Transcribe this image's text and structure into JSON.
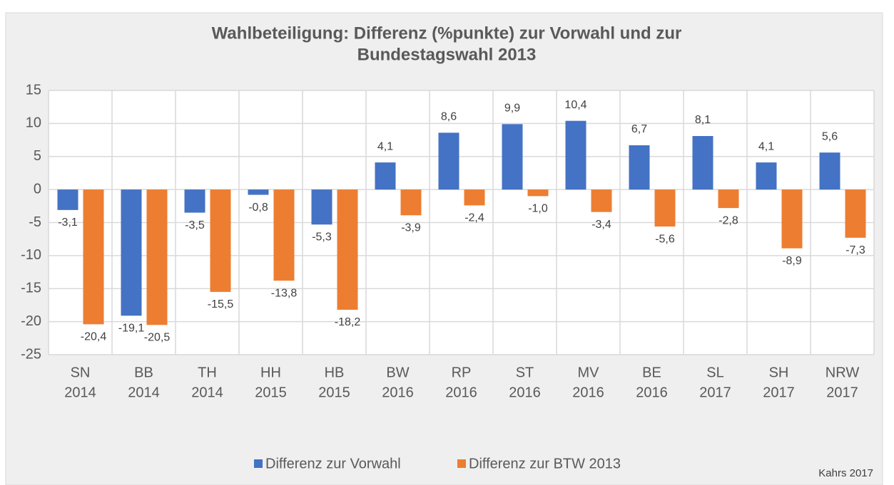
{
  "chart_data": {
    "type": "bar",
    "title": [
      "Wahlbeteiligung: Differenz (%punkte) zur Vorwahl und zur",
      "Bundestagswahl 2013"
    ],
    "categories": [
      [
        "SN",
        "2014"
      ],
      [
        "BB",
        "2014"
      ],
      [
        "TH",
        "2014"
      ],
      [
        "HH",
        "2015"
      ],
      [
        "HB",
        "2015"
      ],
      [
        "BW",
        "2016"
      ],
      [
        "RP",
        "2016"
      ],
      [
        "ST",
        "2016"
      ],
      [
        "MV",
        "2016"
      ],
      [
        "BE",
        "2016"
      ],
      [
        "SL",
        "2017"
      ],
      [
        "SH",
        "2017"
      ],
      [
        "NRW",
        "2017"
      ]
    ],
    "series": [
      {
        "name": "Differenz zur Vorwahl",
        "color": "#4472c4",
        "values": [
          -3.1,
          -19.1,
          -3.5,
          -0.8,
          -5.3,
          4.1,
          8.6,
          9.9,
          10.4,
          6.7,
          8.1,
          4.1,
          5.6
        ],
        "value_labels": [
          "-3,1",
          "-19,1",
          "-3,5",
          "-0,8",
          "-5,3",
          "4,1",
          "8,6",
          "9,9",
          "10,4",
          "6,7",
          "8,1",
          "4,1",
          "5,6"
        ]
      },
      {
        "name": "Differenz zur BTW 2013",
        "color": "#ed7d31",
        "values": [
          -20.4,
          -20.5,
          -15.5,
          -13.8,
          -18.2,
          -3.9,
          -2.4,
          -1.0,
          -3.4,
          -5.6,
          -2.8,
          -8.9,
          -7.3
        ],
        "value_labels": [
          "-20,4",
          "-20,5",
          "-15,5",
          "-13,8",
          "-18,2",
          "-3,9",
          "-2,4",
          "-1,0",
          "-3,4",
          "-5,6",
          "-2,8",
          "-8,9",
          "-7,3"
        ]
      }
    ],
    "ylim": [
      -25,
      15
    ],
    "yticks": [
      15,
      10,
      5,
      0,
      -5,
      -10,
      -15,
      -20,
      -25
    ],
    "grid": true,
    "legend": "bottom",
    "source": "Kahrs 2017"
  }
}
